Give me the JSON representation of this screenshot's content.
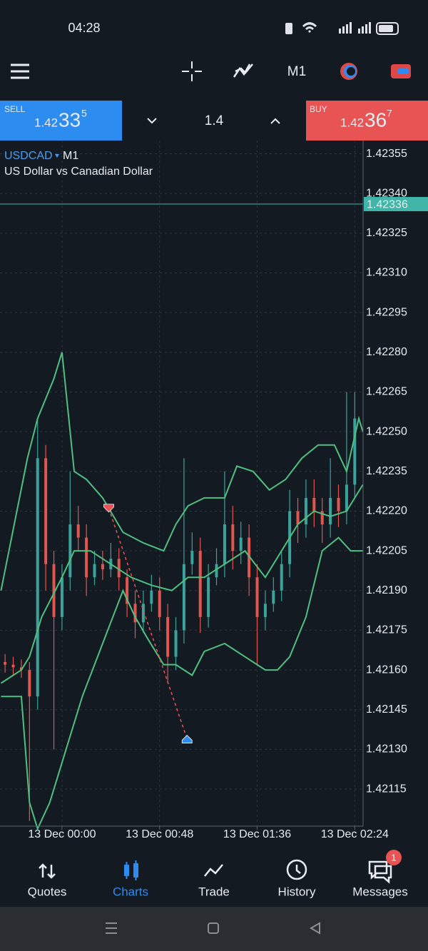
{
  "status_bar": {
    "time": "04:28"
  },
  "toolbar": {
    "timeframe": "M1"
  },
  "trade_panel": {
    "sell": {
      "label": "SELL",
      "price_prefix": "1.42",
      "price_big": "33",
      "price_sup": "5"
    },
    "volume": "1.4",
    "buy": {
      "label": "BUY",
      "price_prefix": "1.42",
      "price_big": "36",
      "price_sup": "7"
    }
  },
  "chart_data": {
    "type": "candlestick",
    "symbol": "USDCAD",
    "timeframe": "M1",
    "description": "US Dollar vs Canadian Dollar",
    "xlim": [
      -30.5,
      148.1
    ],
    "xticks": [
      {
        "value": 0,
        "label": "13 Dec 00:00"
      },
      {
        "value": 48,
        "label": "13 Dec 00:48"
      },
      {
        "value": 96,
        "label": "13 Dec 01:36"
      },
      {
        "value": 144,
        "label": "13 Dec 02:24"
      }
    ],
    "ylim": [
      1.42101,
      1.4236
    ],
    "yticks": [
      1.42355,
      {
        "value": 1.4234,
        "label": "1.42340"
      },
      1.42325,
      {
        "value": 1.4231,
        "label": "1.42310"
      },
      1.42295,
      {
        "value": 1.4228,
        "label": "1.42280"
      },
      1.42265,
      {
        "value": 1.4225,
        "label": "1.42250"
      },
      1.42235,
      {
        "value": 1.4222,
        "label": "1.42220"
      },
      1.42205,
      {
        "value": 1.4219,
        "label": "1.42190"
      },
      1.42175,
      {
        "value": 1.4216,
        "label": "1.42160"
      },
      1.42145,
      {
        "value": 1.4213,
        "label": "1.42130"
      },
      1.42115
    ],
    "grid": true,
    "current_price": 1.42336,
    "up_color": "#3aa39b",
    "down_color": "#e0574f",
    "x": [
      -28,
      -24,
      -20,
      -16,
      -12,
      -8,
      -4,
      0,
      4,
      8,
      12,
      16,
      20,
      24,
      28,
      32,
      36,
      40,
      44,
      48,
      52,
      56,
      60,
      64,
      68,
      72,
      76,
      80,
      84,
      88,
      92,
      96,
      100,
      104,
      108,
      112,
      116,
      120,
      124,
      128,
      132,
      136,
      140,
      144
    ],
    "open": [
      1.42163,
      1.42162,
      1.42161,
      1.4216,
      1.4215,
      1.4224,
      1.422,
      1.4218,
      1.42195,
      1.42215,
      1.4221,
      1.42195,
      1.422,
      1.42198,
      1.42202,
      1.42195,
      1.42185,
      1.42178,
      1.42185,
      1.4219,
      1.4218,
      1.42165,
      1.42175,
      1.422,
      1.42205,
      1.4218,
      1.42195,
      1.422,
      1.42215,
      1.42205,
      1.4221,
      1.42195,
      1.4218,
      1.42185,
      1.4219,
      1.422,
      1.4222,
      1.42215,
      1.42225,
      1.4222,
      1.42215,
      1.42225,
      1.4222,
      1.4223
    ],
    "high": [
      1.42166,
      1.42165,
      1.42164,
      1.42163,
      1.42255,
      1.42245,
      1.42205,
      1.422,
      1.42235,
      1.42222,
      1.42215,
      1.42205,
      1.42205,
      1.42208,
      1.42206,
      1.42198,
      1.4219,
      1.4219,
      1.42196,
      1.42195,
      1.42185,
      1.4218,
      1.4224,
      1.42212,
      1.4221,
      1.422,
      1.42206,
      1.42235,
      1.42222,
      1.42216,
      1.42215,
      1.422,
      1.4219,
      1.42195,
      1.42205,
      1.42228,
      1.42225,
      1.42232,
      1.42232,
      1.42225,
      1.4224,
      1.4223,
      1.42265,
      1.42265
    ],
    "low": [
      1.42159,
      1.42158,
      1.42157,
      1.42103,
      1.42145,
      1.4219,
      1.4213,
      1.42175,
      1.4219,
      1.42205,
      1.42188,
      1.42192,
      1.42194,
      1.42195,
      1.4219,
      1.4218,
      1.42172,
      1.42174,
      1.42182,
      1.42175,
      1.42155,
      1.4216,
      1.4217,
      1.42196,
      1.42174,
      1.42176,
      1.42192,
      1.42195,
      1.42198,
      1.422,
      1.42188,
      1.42162,
      1.42175,
      1.42182,
      1.42186,
      1.42195,
      1.42208,
      1.4221,
      1.42214,
      1.42208,
      1.4221,
      1.42214,
      1.42215,
      1.42225
    ],
    "close": [
      1.42162,
      1.42161,
      1.4216,
      1.4215,
      1.4224,
      1.422,
      1.4218,
      1.42195,
      1.42215,
      1.4221,
      1.42195,
      1.422,
      1.42198,
      1.42202,
      1.42195,
      1.42185,
      1.42178,
      1.42185,
      1.4219,
      1.4218,
      1.42165,
      1.42175,
      1.422,
      1.42205,
      1.4218,
      1.42195,
      1.422,
      1.42215,
      1.42205,
      1.4221,
      1.42195,
      1.4218,
      1.42185,
      1.4219,
      1.422,
      1.4222,
      1.42215,
      1.42225,
      1.4222,
      1.42215,
      1.42225,
      1.4222,
      1.4223,
      1.42255
    ],
    "bands": [
      {
        "color": "#4fc07f",
        "x": [
          -30,
          -17,
          -12,
          -4,
          0,
          6,
          12,
          20,
          30,
          40,
          50,
          56,
          62,
          70,
          80,
          86,
          94,
          102,
          110,
          118,
          126,
          134,
          140,
          146,
          148
        ],
        "values": [
          1.4219,
          1.4224,
          1.42255,
          1.4227,
          1.4228,
          1.42235,
          1.42232,
          1.42225,
          1.42212,
          1.42208,
          1.42205,
          1.42215,
          1.42222,
          1.42225,
          1.42225,
          1.42237,
          1.42235,
          1.42228,
          1.42232,
          1.4224,
          1.42245,
          1.42245,
          1.42235,
          1.42255,
          1.4225
        ]
      },
      {
        "color": "#4fc07f",
        "x": [
          -30,
          -20,
          -16,
          -10,
          0,
          6,
          14,
          24,
          34,
          44,
          54,
          62,
          70,
          80,
          90,
          100,
          108,
          116,
          124,
          132,
          140,
          148
        ],
        "values": [
          1.42155,
          1.4216,
          1.42165,
          1.4218,
          1.42195,
          1.42205,
          1.42205,
          1.422,
          1.42195,
          1.42192,
          1.4219,
          1.42195,
          1.42195,
          1.422,
          1.42205,
          1.42195,
          1.42205,
          1.42215,
          1.4222,
          1.42218,
          1.4222,
          1.4223
        ]
      },
      {
        "color": "#4fc07f",
        "x": [
          -30,
          -20,
          -16,
          -12,
          -6,
          0,
          10,
          20,
          30,
          36,
          42,
          50,
          56,
          64,
          70,
          80,
          90,
          100,
          106,
          112,
          120,
          128,
          136,
          142,
          148
        ],
        "values": [
          1.4215,
          1.4215,
          1.4211,
          1.421,
          1.4211,
          1.42125,
          1.4215,
          1.4217,
          1.4219,
          1.4218,
          1.42172,
          1.42162,
          1.42162,
          1.42158,
          1.42167,
          1.4217,
          1.42165,
          1.4216,
          1.4216,
          1.42165,
          1.4218,
          1.42205,
          1.4221,
          1.42205,
          1.42205
        ]
      }
    ],
    "trades": {
      "x": [
        23,
        61.5
      ],
      "price": [
        1.42221,
        1.42134
      ]
    }
  },
  "bottom_nav": [
    "Quotes",
    "Charts",
    "Trade",
    "History",
    "Messages"
  ],
  "badge": "1"
}
